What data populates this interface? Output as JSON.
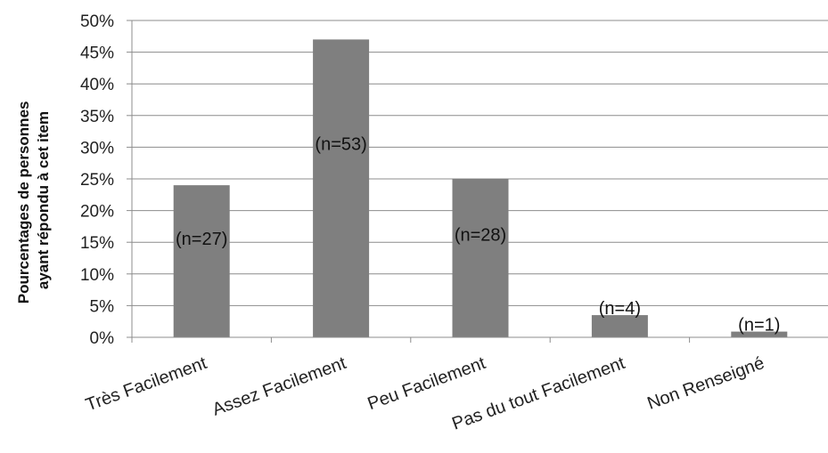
{
  "chart_data": {
    "type": "bar",
    "categories": [
      "Très Facilement",
      "Assez Facilement",
      "Peu Facilement",
      "Pas du tout Facilement",
      "Non Renseigné"
    ],
    "values": [
      24,
      47,
      25,
      3.5,
      0.9
    ],
    "data_labels": [
      "(n=27)",
      "(n=53)",
      "(n=28)",
      "(n=4)",
      "(n=1)"
    ],
    "ylabel_lines": [
      "Pourcentages de personnes",
      "ayant répondu à cet item"
    ],
    "ylim": [
      0,
      50
    ],
    "y_ticks": [
      0,
      5,
      10,
      15,
      20,
      25,
      30,
      35,
      40,
      45,
      50
    ],
    "y_tick_labels": [
      "0%",
      "5%",
      "10%",
      "15%",
      "20%",
      "25%",
      "30%",
      "35%",
      "40%",
      "45%",
      "50%"
    ],
    "grid": true,
    "legend": "none",
    "colors": {
      "bar": "#7f7f7f",
      "grid": "#8c8c8c",
      "axis": "#8c8c8c"
    }
  }
}
